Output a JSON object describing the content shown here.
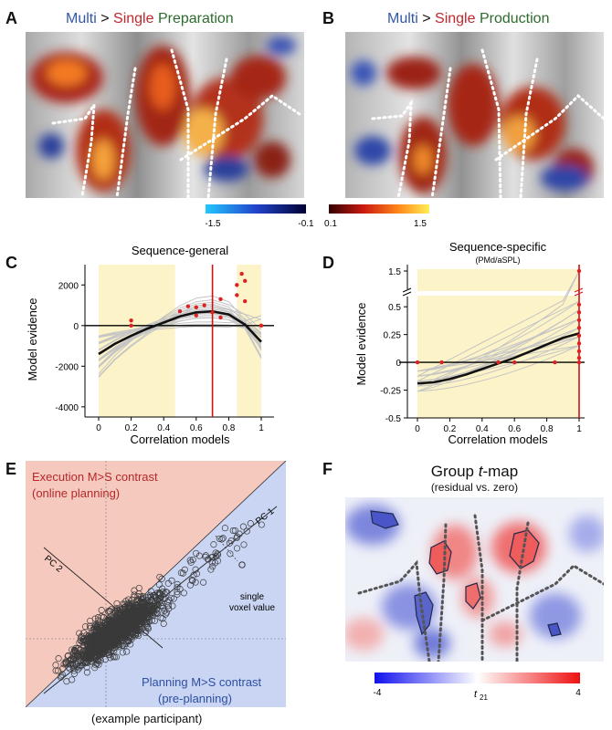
{
  "panelA": {
    "letter": "A",
    "title_multi": "Multi",
    "title_gt": ">",
    "title_single": "Single",
    "title_phase": "Preparation"
  },
  "panelB": {
    "letter": "B",
    "title_multi": "Multi",
    "title_gt": ">",
    "title_single": "Single",
    "title_phase": "Production"
  },
  "colorbar_top": {
    "neg_min": "-1.5",
    "neg_max": "-0.1",
    "pos_min": "0.1",
    "pos_max": "1.5"
  },
  "panelC": {
    "letter": "C",
    "title": "Sequence-general",
    "ylabel": "Model evidence",
    "xlabel": "Correlation models",
    "yticks": [
      "2000",
      "0",
      "-2000",
      "-4000"
    ],
    "xticks": [
      "0",
      "0.2",
      "0.4",
      "0.6",
      "0.8",
      "1"
    ]
  },
  "panelD": {
    "letter": "D",
    "title": "Sequence-specific",
    "subtitle": "(PMd/aSPL)",
    "ylabel": "Model evidence",
    "xlabel": "Correlation models",
    "yticks": [
      "1.5",
      "0.5",
      "0.25",
      "0",
      "-0.25",
      "-0.5"
    ],
    "xticks": [
      "0",
      "0.2",
      "0.4",
      "0.6",
      "0.8",
      "1"
    ]
  },
  "panelE": {
    "letter": "E",
    "exec_title": "Execution M>S contrast",
    "exec_sub": "(online planning)",
    "plan_title": "Planning M>S contrast",
    "plan_sub": "(pre-planning)",
    "pc1": "PC 1",
    "pc2": "PC 2",
    "voxel_line1": "single",
    "voxel_line2": "voxel value",
    "caption": "(example participant)"
  },
  "panelF": {
    "letter": "F",
    "title_prefix": "Group ",
    "title_t": "t",
    "title_suffix": "-map",
    "subtitle": "(residual vs. zero)",
    "cb_min": "-4",
    "cb_max": "4",
    "cb_label": "t",
    "cb_label_sub": "21"
  },
  "chart_data": [
    {
      "type": "line",
      "title": "Sequence-general",
      "xlabel": "Correlation models",
      "ylabel": "Model evidence",
      "xlim": [
        0,
        1
      ],
      "ylim": [
        -4500,
        3000
      ],
      "mean_curve": {
        "x": [
          0,
          0.1,
          0.2,
          0.3,
          0.4,
          0.5,
          0.6,
          0.7,
          0.8,
          0.9,
          1
        ],
        "y": [
          -1400,
          -900,
          -500,
          -150,
          150,
          450,
          650,
          700,
          550,
          50,
          -800
        ]
      },
      "red_line_x": 0.7,
      "shaded_x_ranges": [
        [
          0,
          0.47
        ],
        [
          0.85,
          1
        ]
      ]
    },
    {
      "type": "line",
      "title": "Sequence-specific",
      "subtitle": "(PMd/aSPL)",
      "xlabel": "Correlation models",
      "ylabel": "Model evidence",
      "xlim": [
        0,
        1
      ],
      "ylim": [
        -0.5,
        1.5
      ],
      "mean_curve": {
        "x": [
          0,
          0.1,
          0.2,
          0.3,
          0.4,
          0.5,
          0.6,
          0.7,
          0.8,
          0.9,
          1
        ],
        "y": [
          -0.19,
          -0.18,
          -0.15,
          -0.11,
          -0.06,
          -0.01,
          0.04,
          0.1,
          0.16,
          0.22,
          0.26
        ]
      },
      "red_line_x": 1
    }
  ]
}
